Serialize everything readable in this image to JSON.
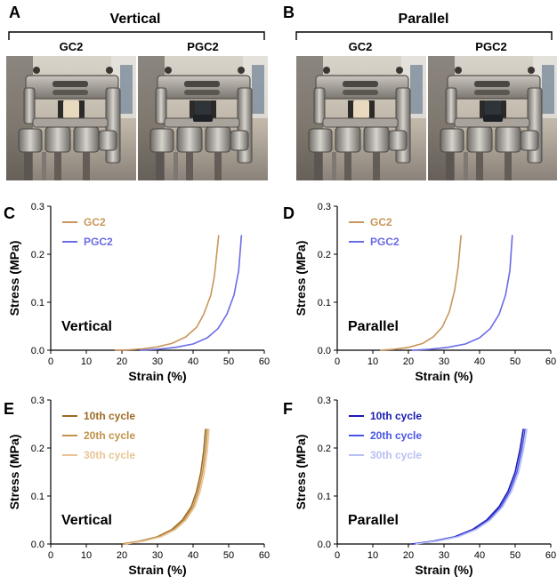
{
  "panels": {
    "A": {
      "letter": "A",
      "title": "Vertical",
      "photo_left": "GC2",
      "photo_right": "PGC2"
    },
    "B": {
      "letter": "B",
      "title": "Parallel",
      "photo_left": "GC2",
      "photo_right": "PGC2"
    }
  },
  "colors": {
    "gc2": "#c8965a",
    "pgc2": "#6b6be6",
    "c10_tan": "#9c6b24",
    "c20_tan": "#c29248",
    "c30_tan": "#e8c496",
    "c10_blue": "#1a1ab0",
    "c20_blue": "#4a55e8",
    "c30_blue": "#b8bff5"
  },
  "chart_data": [
    {
      "id": "C",
      "letter": "C",
      "type": "line",
      "xlabel": "Strain (%)",
      "ylabel": "Stress (MPa)",
      "xlim": [
        0,
        60
      ],
      "ylim": [
        0,
        0.3
      ],
      "xticks": [
        "0",
        "10",
        "20",
        "30",
        "40",
        "50",
        "60"
      ],
      "yticks": [
        "0.0",
        "0.1",
        "0.2",
        "0.3"
      ],
      "annotation": "Vertical",
      "series": [
        {
          "name": "GC2",
          "color": "#c8965a",
          "x": [
            18,
            22,
            26,
            30,
            34,
            38,
            41,
            43,
            45,
            46,
            47.2
          ],
          "y": [
            0,
            0.001,
            0.003,
            0.007,
            0.014,
            0.028,
            0.048,
            0.075,
            0.115,
            0.155,
            0.24
          ]
        },
        {
          "name": "PGC2",
          "color": "#6b6be6",
          "x": [
            25,
            30,
            35,
            40,
            44,
            47,
            49.5,
            51.5,
            52.8,
            53.6
          ],
          "y": [
            0,
            0.002,
            0.006,
            0.013,
            0.026,
            0.045,
            0.075,
            0.115,
            0.165,
            0.24
          ]
        }
      ]
    },
    {
      "id": "D",
      "letter": "D",
      "type": "line",
      "xlabel": "Strain (%)",
      "ylabel": "Stress (MPa)",
      "xlim": [
        0,
        60
      ],
      "ylim": [
        0,
        0.3
      ],
      "xticks": [
        "0",
        "10",
        "20",
        "30",
        "40",
        "50",
        "60"
      ],
      "yticks": [
        "0.0",
        "0.1",
        "0.2",
        "0.3"
      ],
      "annotation": "Parallel",
      "series": [
        {
          "name": "GC2",
          "color": "#c8965a",
          "x": [
            12,
            16,
            20,
            24,
            27,
            29.5,
            31.5,
            33,
            34,
            34.8
          ],
          "y": [
            0,
            0.002,
            0.006,
            0.014,
            0.028,
            0.048,
            0.08,
            0.125,
            0.175,
            0.24
          ]
        },
        {
          "name": "PGC2",
          "color": "#6b6be6",
          "x": [
            21,
            26,
            31,
            36,
            40,
            43,
            45.5,
            47.3,
            48.5,
            49.2
          ],
          "y": [
            0,
            0.002,
            0.006,
            0.013,
            0.026,
            0.045,
            0.075,
            0.115,
            0.165,
            0.24
          ]
        }
      ]
    },
    {
      "id": "E",
      "letter": "E",
      "type": "line",
      "xlabel": "Strain (%)",
      "ylabel": "Stress (MPa)",
      "xlim": [
        0,
        60
      ],
      "ylim": [
        0,
        0.3
      ],
      "xticks": [
        "0",
        "10",
        "20",
        "30",
        "40",
        "50",
        "60"
      ],
      "yticks": [
        "0.0",
        "0.1",
        "0.2",
        "0.3"
      ],
      "annotation": "Vertical",
      "series": [
        {
          "name": "10th cycle",
          "color": "#9c6b24",
          "x": [
            20,
            25,
            30,
            34,
            37,
            39.5,
            41,
            42.2,
            43,
            43.5
          ],
          "y": [
            0,
            0.006,
            0.015,
            0.03,
            0.05,
            0.078,
            0.11,
            0.15,
            0.195,
            0.24
          ]
        },
        {
          "name": "20th cycle",
          "color": "#c29248",
          "x": [
            20.5,
            25.5,
            30.5,
            34.5,
            37.5,
            40,
            41.5,
            42.7,
            43.5,
            44
          ],
          "y": [
            0,
            0.006,
            0.015,
            0.03,
            0.05,
            0.078,
            0.11,
            0.15,
            0.195,
            0.24
          ]
        },
        {
          "name": "30th cycle",
          "color": "#e8c496",
          "x": [
            21,
            26,
            31,
            35,
            38,
            40.5,
            42,
            43.2,
            44,
            44.5
          ],
          "y": [
            0,
            0.006,
            0.015,
            0.03,
            0.05,
            0.078,
            0.11,
            0.15,
            0.195,
            0.24
          ]
        }
      ]
    },
    {
      "id": "F",
      "letter": "F",
      "type": "line",
      "xlabel": "Strain (%)",
      "ylabel": "Stress (MPa)",
      "xlim": [
        0,
        60
      ],
      "ylim": [
        0,
        0.3
      ],
      "xticks": [
        "0",
        "10",
        "20",
        "30",
        "40",
        "50",
        "60"
      ],
      "yticks": [
        "0.0",
        "0.1",
        "0.2",
        "0.3"
      ],
      "annotation": "Parallel",
      "series": [
        {
          "name": "10th cycle",
          "color": "#1a1ab0",
          "x": [
            21,
            27,
            33,
            38,
            42,
            45.5,
            48,
            50,
            51.3,
            52.3
          ],
          "y": [
            0,
            0.006,
            0.015,
            0.03,
            0.05,
            0.078,
            0.11,
            0.15,
            0.195,
            0.24
          ]
        },
        {
          "name": "20th cycle",
          "color": "#4a55e8",
          "x": [
            21.5,
            27.5,
            33.5,
            38.5,
            42.5,
            46,
            48.5,
            50.5,
            51.8,
            52.8
          ],
          "y": [
            0,
            0.006,
            0.015,
            0.03,
            0.05,
            0.078,
            0.11,
            0.15,
            0.195,
            0.24
          ]
        },
        {
          "name": "30th cycle",
          "color": "#b8bff5",
          "x": [
            22,
            28,
            34,
            39,
            43,
            46.5,
            49,
            51,
            52.3,
            53.3
          ],
          "y": [
            0,
            0.006,
            0.015,
            0.03,
            0.05,
            0.078,
            0.11,
            0.15,
            0.195,
            0.24
          ]
        }
      ]
    }
  ]
}
